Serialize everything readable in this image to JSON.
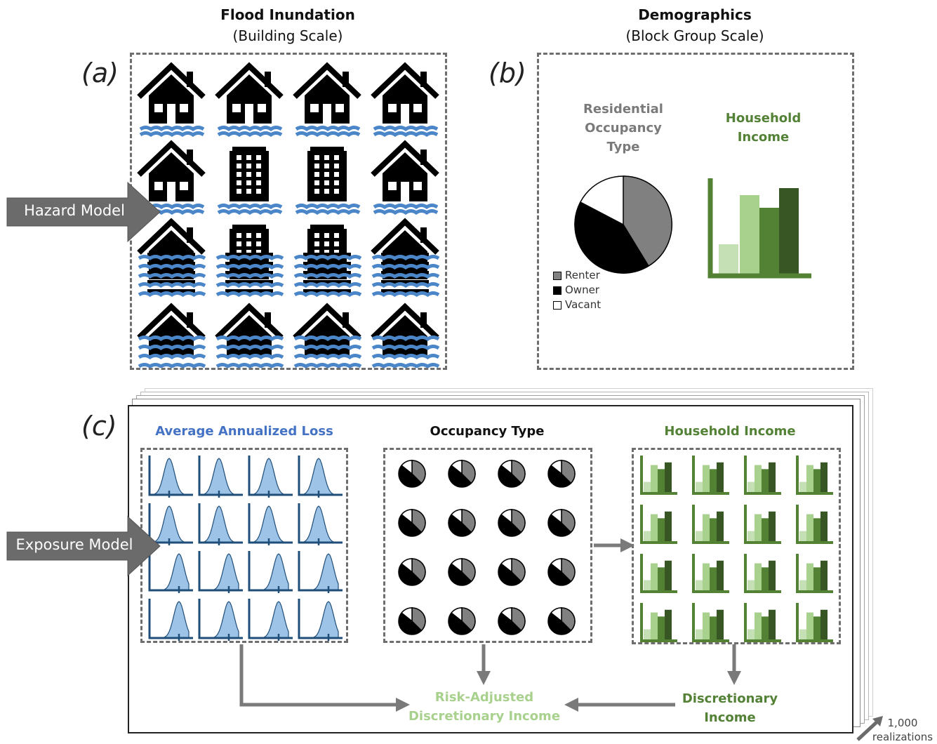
{
  "panel_a": {
    "label": "(a)",
    "title": "Flood Inundation",
    "subtitle": "(Building Scale)"
  },
  "panel_b": {
    "label": "(b)",
    "title": "Demographics",
    "subtitle": "(Block Group Scale)",
    "pie_title": [
      "Residential",
      "Occupancy",
      "Type"
    ],
    "bar_title": [
      "Household",
      "Income"
    ],
    "legend": [
      {
        "label": "Renter",
        "color": "#808080"
      },
      {
        "label": "Owner",
        "color": "#000000"
      },
      {
        "label": "Vacant",
        "color": "#ffffff"
      }
    ]
  },
  "panel_c": {
    "label": "(c)",
    "aal_title": "Average Annualized Loss",
    "occ_title": "Occupancy Type",
    "income_title": "Household Income",
    "risk_adjusted": [
      "Risk-Adjusted",
      "Discretionary Income"
    ],
    "discretionary": [
      "Discretionary",
      "Income"
    ],
    "realizations": [
      "1,000",
      "realizations"
    ]
  },
  "arrows": {
    "hazard": "Hazard Model",
    "exposure": "Exposure Model"
  },
  "colors": {
    "water": "#4a86c8",
    "dash": "#6e6e6e",
    "dark_green": "#375623",
    "mid_green": "#548235",
    "light_green": "#a9d18e",
    "pale_green": "#c5e0b4",
    "blue_fill": "#9dc3e6",
    "blue_line": "#1f4e79"
  }
}
